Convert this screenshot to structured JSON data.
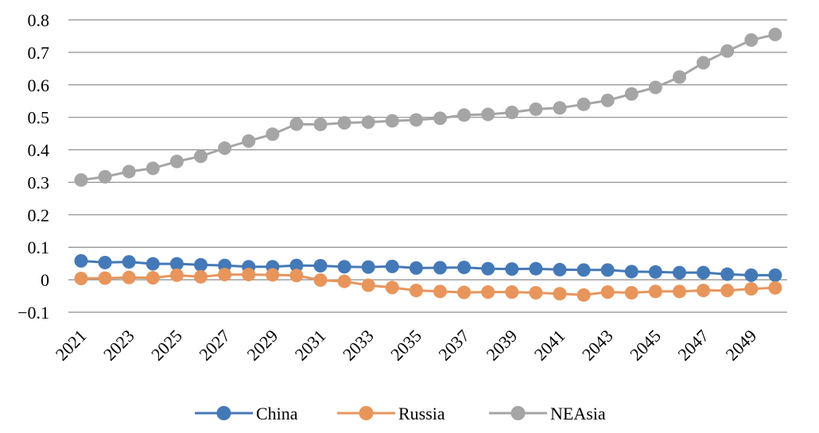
{
  "chart_data": {
    "type": "line",
    "title": "",
    "xlabel": "",
    "ylabel": "",
    "ylim": [
      -0.1,
      0.8
    ],
    "yticks": [
      -0.1,
      0,
      0.1,
      0.2,
      0.3,
      0.4,
      0.5,
      0.6,
      0.7,
      0.8
    ],
    "ytick_labels": [
      "−0.1",
      "0",
      "0.1",
      "0.2",
      "0.3",
      "0.4",
      "0.5",
      "0.6",
      "0.7",
      "0.8"
    ],
    "xtick_labels": [
      "2021",
      "2023",
      "2025",
      "2027",
      "2029",
      "2031",
      "2033",
      "2035",
      "2037",
      "2039",
      "2041",
      "2043",
      "2045",
      "2047",
      "2049"
    ],
    "x": [
      2021,
      2022,
      2023,
      2024,
      2025,
      2026,
      2027,
      2028,
      2029,
      2030,
      2031,
      2032,
      2033,
      2034,
      2035,
      2036,
      2037,
      2038,
      2039,
      2040,
      2041,
      2042,
      2043,
      2044,
      2045,
      2046,
      2047,
      2048,
      2049,
      2050
    ],
    "grid": true,
    "legend_position": "bottom",
    "series": [
      {
        "name": "China",
        "color": "#4479B8",
        "values": [
          0.058,
          0.053,
          0.055,
          0.049,
          0.049,
          0.046,
          0.044,
          0.04,
          0.04,
          0.044,
          0.043,
          0.04,
          0.039,
          0.041,
          0.036,
          0.037,
          0.038,
          0.034,
          0.033,
          0.034,
          0.031,
          0.03,
          0.03,
          0.025,
          0.024,
          0.022,
          0.022,
          0.017,
          0.014,
          0.014
        ]
      },
      {
        "name": "Russia",
        "color": "#E8955C",
        "values": [
          0.004,
          0.005,
          0.007,
          0.006,
          0.014,
          0.009,
          0.016,
          0.016,
          0.015,
          0.013,
          -0.001,
          -0.005,
          -0.017,
          -0.024,
          -0.033,
          -0.036,
          -0.039,
          -0.038,
          -0.038,
          -0.04,
          -0.043,
          -0.047,
          -0.038,
          -0.04,
          -0.036,
          -0.036,
          -0.033,
          -0.033,
          -0.028,
          -0.025
        ]
      },
      {
        "name": "NEAsia",
        "color": "#A5A5A5",
        "values": [
          0.307,
          0.317,
          0.333,
          0.343,
          0.364,
          0.38,
          0.405,
          0.427,
          0.448,
          0.479,
          0.478,
          0.483,
          0.485,
          0.489,
          0.492,
          0.497,
          0.507,
          0.509,
          0.515,
          0.525,
          0.529,
          0.54,
          0.552,
          0.572,
          0.592,
          0.624,
          0.668,
          0.704,
          0.738,
          0.755
        ]
      }
    ]
  }
}
